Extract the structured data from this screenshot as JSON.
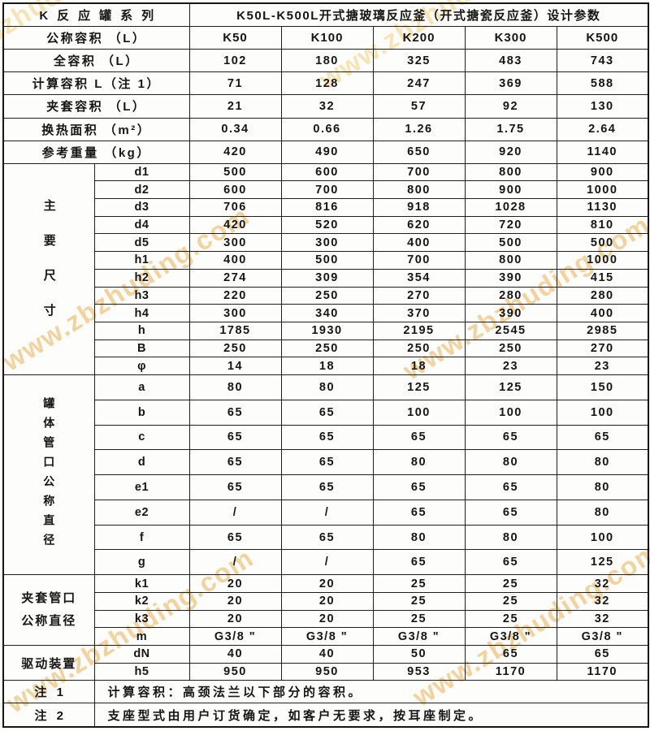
{
  "watermark": {
    "text": "www.zbzhuding.com",
    "color": "#e8a83e"
  },
  "table": {
    "series_title": "K反应罐系列",
    "design_title": "K50L-K500L开式搪玻璃反应釜（开式搪瓷反应釜）设计参数",
    "volume_row": {
      "label": "公称容积 （L）",
      "values": [
        "K50",
        "K100",
        "K200",
        "K300",
        "K500"
      ]
    },
    "spec_rows": [
      {
        "label": "全容积 （L）",
        "values": [
          "102",
          "180",
          "325",
          "483",
          "743"
        ]
      },
      {
        "label": "计算容积 L（注 1）",
        "values": [
          "71",
          "128",
          "247",
          "369",
          "588"
        ]
      },
      {
        "label": "夹套容积 （L）",
        "values": [
          "21",
          "32",
          "57",
          "92",
          "130"
        ]
      },
      {
        "label": "换热面积 （m²）",
        "values": [
          "0.34",
          "0.66",
          "1.26",
          "1.75",
          "2.64"
        ]
      },
      {
        "label": "参考重量 （kg）",
        "values": [
          "420",
          "490",
          "650",
          "920",
          "1140"
        ]
      }
    ],
    "groups": [
      {
        "label": "主要尺寸",
        "orientation": "vertical",
        "spread": "wide",
        "rows": [
          {
            "label": "d1",
            "values": [
              "500",
              "600",
              "700",
              "800",
              "900"
            ]
          },
          {
            "label": "d2",
            "values": [
              "600",
              "700",
              "800",
              "900",
              "1000"
            ]
          },
          {
            "label": "d3",
            "values": [
              "706",
              "816",
              "918",
              "1028",
              "1130"
            ]
          },
          {
            "label": "d4",
            "values": [
              "420",
              "520",
              "620",
              "720",
              "810"
            ]
          },
          {
            "label": "d5",
            "values": [
              "300",
              "300",
              "400",
              "500",
              "500"
            ]
          },
          {
            "label": "h1",
            "values": [
              "400",
              "500",
              "700",
              "800",
              "1000"
            ]
          },
          {
            "label": "h2",
            "values": [
              "274",
              "309",
              "354",
              "390",
              "415"
            ]
          },
          {
            "label": "h3",
            "values": [
              "220",
              "250",
              "270",
              "280",
              "280"
            ]
          },
          {
            "label": "h4",
            "values": [
              "300",
              "340",
              "370",
              "390",
              "400"
            ]
          },
          {
            "label": "h",
            "values": [
              "1785",
              "1930",
              "2195",
              "2545",
              "2985"
            ]
          },
          {
            "label": "B",
            "values": [
              "250",
              "250",
              "250",
              "250",
              "270"
            ]
          },
          {
            "label": "φ",
            "values": [
              "14",
              "18",
              "18",
              "23",
              "23"
            ]
          }
        ]
      },
      {
        "label": "罐体管口公称直径",
        "orientation": "vertical",
        "spread": "tight",
        "rows": [
          {
            "label": "a",
            "values": [
              "80",
              "80",
              "125",
              "125",
              "150"
            ]
          },
          {
            "label": "b",
            "values": [
              "65",
              "65",
              "100",
              "100",
              "100"
            ]
          },
          {
            "label": "c",
            "values": [
              "65",
              "65",
              "65",
              "65",
              "65"
            ]
          },
          {
            "label": "d",
            "values": [
              "65",
              "65",
              "80",
              "80",
              "80"
            ]
          },
          {
            "label": "e1",
            "values": [
              "65",
              "65",
              "65",
              "65",
              "80"
            ]
          },
          {
            "label": "e2",
            "values": [
              "/",
              "/",
              "65",
              "65",
              "80"
            ]
          },
          {
            "label": "f",
            "values": [
              "65",
              "65",
              "80",
              "80",
              "100"
            ]
          },
          {
            "label": "g",
            "values": [
              "/",
              "/",
              "65",
              "65",
              "125"
            ]
          }
        ]
      },
      {
        "label": "夹套管口公称直径",
        "orientation": "wrap",
        "rows": [
          {
            "label": "k1",
            "values": [
              "20",
              "20",
              "25",
              "25",
              "32"
            ]
          },
          {
            "label": "k2",
            "values": [
              "20",
              "20",
              "25",
              "25",
              "32"
            ]
          },
          {
            "label": "k3",
            "values": [
              "20",
              "20",
              "25",
              "25",
              "32"
            ]
          },
          {
            "label": "m",
            "values": [
              "G3/8 \"",
              "G3/8 \"",
              "G3/8 \"",
              "G3/8 \"",
              "G3/8 \""
            ]
          }
        ]
      },
      {
        "label": "驱动装置",
        "orientation": "horizontal",
        "rows": [
          {
            "label": "dN",
            "values": [
              "40",
              "40",
              "50",
              "65",
              "65"
            ]
          },
          {
            "label": "h5",
            "values": [
              "950",
              "950",
              "953",
              "1170",
              "1170"
            ]
          }
        ]
      }
    ],
    "notes": [
      {
        "label": "注 1",
        "text": "计算容积：高颈法兰以下部分的容积。"
      },
      {
        "label": "注 2",
        "text": "支座型式由用户订货确定，如客户无要求，按耳座制定。"
      }
    ]
  }
}
